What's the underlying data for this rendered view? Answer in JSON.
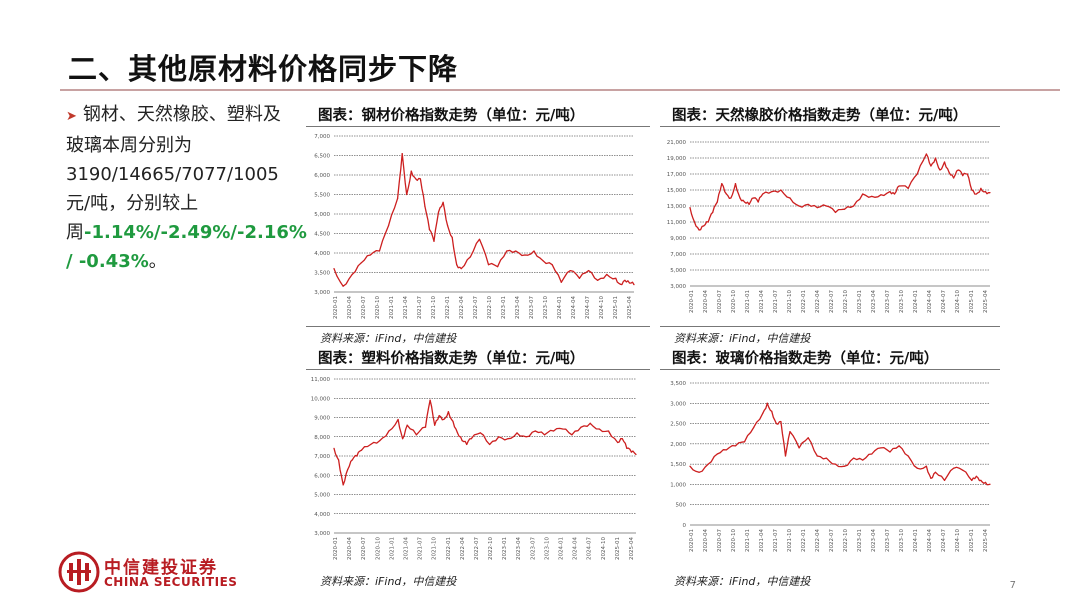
{
  "slide": {
    "title": "二、其他原材料价格同步下降",
    "bullet_prefix": "钢材、天然橡胶、塑料及玻璃本周分别为3190/14665/7077/1005元/吨，分别较上周",
    "bullet_changes": "-1.14%/-2.49%/-2.16% / -0.43%",
    "bullet_end": "。",
    "page_number": "7",
    "logo_cn": "中信建投证券",
    "logo_en": "CHINA SECURITIES",
    "colors": {
      "line": "#cc1f1f",
      "accent_green": "#1f9a3f",
      "brand_red": "#b81c22"
    }
  },
  "chart_data": [
    {
      "type": "line",
      "title": "图表：钢材价格指数走势（单位：元/吨）",
      "source": "资料来源：iFind，中信建投",
      "ylim": [
        3000,
        7000
      ],
      "yticks": [
        "3,000",
        "3,500",
        "4,000",
        "4,500",
        "5,000",
        "5,500",
        "6,000",
        "6,500",
        "7,000"
      ],
      "xticks": [
        "2020-01",
        "2020-04",
        "2020-07",
        "2020-10",
        "2021-01",
        "2021-04",
        "2021-07",
        "2021-10",
        "2022-01",
        "2022-04",
        "2022-07",
        "2022-10",
        "2023-01",
        "2023-04",
        "2023-07",
        "2023-10",
        "2024-01",
        "2024-04",
        "2024-07",
        "2024-10",
        "2025-01",
        "2025-04"
      ],
      "x": [
        0,
        2,
        4,
        6,
        8,
        10,
        12,
        14,
        15,
        16,
        17,
        18,
        19,
        20,
        21,
        22,
        23,
        24,
        25,
        26,
        27,
        28,
        30,
        32,
        34,
        36,
        38,
        40,
        42,
        44,
        46,
        48,
        50,
        52,
        54,
        56,
        58,
        60,
        62,
        63,
        64,
        65,
        66
      ],
      "values": [
        3600,
        3150,
        3450,
        3750,
        3950,
        4050,
        4700,
        5400,
        6550,
        5500,
        6100,
        5900,
        5900,
        5200,
        4600,
        4300,
        5050,
        5300,
        4700,
        4400,
        3700,
        3600,
        3900,
        4350,
        3700,
        3650,
        4050,
        4050,
        3950,
        4050,
        3800,
        3700,
        3250,
        3550,
        3350,
        3550,
        3300,
        3450,
        3350,
        3200,
        3300,
        3230,
        3190
      ]
    },
    {
      "type": "line",
      "title": "图表：天然橡胶价格指数走势（单位：元/吨）",
      "source": "资料来源：iFind，中信建投",
      "ylim": [
        3000,
        21000
      ],
      "yticks": [
        "3,000",
        "5,000",
        "7,000",
        "9,000",
        "11,000",
        "13,000",
        "15,000",
        "17,000",
        "19,000",
        "21,000"
      ],
      "xticks": [
        "2020-01",
        "2020-04",
        "2020-07",
        "2020-10",
        "2021-01",
        "2021-04",
        "2021-07",
        "2021-10",
        "2022-01",
        "2022-04",
        "2022-07",
        "2022-10",
        "2023-01",
        "2023-04",
        "2023-07",
        "2023-10",
        "2024-01",
        "2024-04",
        "2024-07",
        "2024-10",
        "2025-01",
        "2025-04"
      ],
      "x": [
        0,
        1,
        2,
        3,
        4,
        5,
        6,
        7,
        8,
        9,
        10,
        11,
        12,
        13,
        14,
        15,
        16,
        18,
        20,
        22,
        24,
        26,
        28,
        30,
        32,
        34,
        36,
        38,
        40,
        42,
        44,
        45,
        46,
        48,
        50,
        52,
        53,
        54,
        55,
        56,
        57,
        58,
        59,
        60,
        61,
        62,
        63,
        64,
        65,
        66
      ],
      "values": [
        12800,
        11000,
        10000,
        10500,
        11000,
        12200,
        13500,
        15800,
        14500,
        14000,
        15800,
        14000,
        13500,
        13200,
        14000,
        13500,
        14500,
        14800,
        15000,
        14000,
        13000,
        13200,
        12800,
        13000,
        12200,
        12600,
        13000,
        14500,
        14200,
        14400,
        14800,
        14500,
        15500,
        15200,
        17000,
        19500,
        18000,
        19000,
        17500,
        18500,
        17200,
        16500,
        17500,
        16800,
        17000,
        15000,
        14500,
        15200,
        14800,
        14665
      ]
    },
    {
      "type": "line",
      "title": "图表：塑料价格指数走势（单位：元/吨）",
      "source": "资料来源：iFind，中信建投",
      "ylim": [
        3000,
        11000
      ],
      "yticks": [
        "3,000",
        "4,000",
        "5,000",
        "6,000",
        "7,000",
        "8,000",
        "9,000",
        "10,000",
        "11,000"
      ],
      "xticks": [
        "2020-01",
        "2020-04",
        "2020-07",
        "2020-10",
        "2021-01",
        "2021-04",
        "2021-07",
        "2021-10",
        "2022-01",
        "2022-04",
        "2022-07",
        "2022-10",
        "2023-01",
        "2023-04",
        "2023-07",
        "2023-10",
        "2024-01",
        "2024-04",
        "2024-07",
        "2024-10",
        "2025-01",
        "2025-04"
      ],
      "x": [
        0,
        1,
        2,
        3,
        4,
        5,
        6,
        8,
        10,
        12,
        14,
        15,
        16,
        18,
        20,
        21,
        22,
        23,
        24,
        25,
        26,
        27,
        28,
        29,
        30,
        32,
        34,
        36,
        38,
        40,
        42,
        44,
        46,
        48,
        50,
        52,
        54,
        56,
        58,
        60,
        62,
        63,
        64,
        65,
        66
      ],
      "values": [
        7400,
        6800,
        5500,
        6300,
        6800,
        7000,
        7300,
        7600,
        7800,
        8300,
        8900,
        7900,
        8600,
        8100,
        8500,
        9900,
        8600,
        9100,
        8900,
        9300,
        8800,
        8200,
        7800,
        7600,
        7900,
        8200,
        7600,
        8000,
        7900,
        8200,
        8000,
        8300,
        8100,
        8300,
        8400,
        8100,
        8500,
        8700,
        8400,
        8300,
        7700,
        7900,
        7400,
        7200,
        7077
      ]
    },
    {
      "type": "line",
      "title": "图表：玻璃价格指数走势（单位：元/吨）",
      "source": "资料来源：iFind，中信建投",
      "ylim": [
        0,
        3500
      ],
      "yticks": [
        "0",
        "500",
        "1,000",
        "1,500",
        "2,000",
        "2,500",
        "3,000",
        "3,500"
      ],
      "xticks": [
        "2020-01",
        "2020-04",
        "2020-07",
        "2020-10",
        "2021-01",
        "2021-04",
        "2021-07",
        "2021-10",
        "2022-01",
        "2022-04",
        "2022-07",
        "2022-10",
        "2023-01",
        "2023-04",
        "2023-07",
        "2023-10",
        "2024-01",
        "2024-04",
        "2024-07",
        "2024-10",
        "2025-01",
        "2025-04"
      ],
      "x": [
        0,
        2,
        4,
        6,
        8,
        10,
        12,
        14,
        16,
        17,
        18,
        19,
        20,
        21,
        22,
        24,
        26,
        28,
        30,
        32,
        34,
        36,
        38,
        40,
        42,
        44,
        46,
        48,
        50,
        52,
        53,
        54,
        56,
        58,
        60,
        62,
        63,
        64,
        65,
        66
      ],
      "values": [
        1450,
        1300,
        1500,
        1750,
        1850,
        1950,
        2050,
        2400,
        2750,
        3000,
        2800,
        2500,
        2550,
        1700,
        2300,
        1900,
        2150,
        1700,
        1650,
        1500,
        1450,
        1650,
        1600,
        1750,
        1900,
        1800,
        1950,
        1700,
        1400,
        1450,
        1150,
        1300,
        1100,
        1400,
        1350,
        1100,
        1200,
        1100,
        1050,
        1005
      ]
    }
  ]
}
